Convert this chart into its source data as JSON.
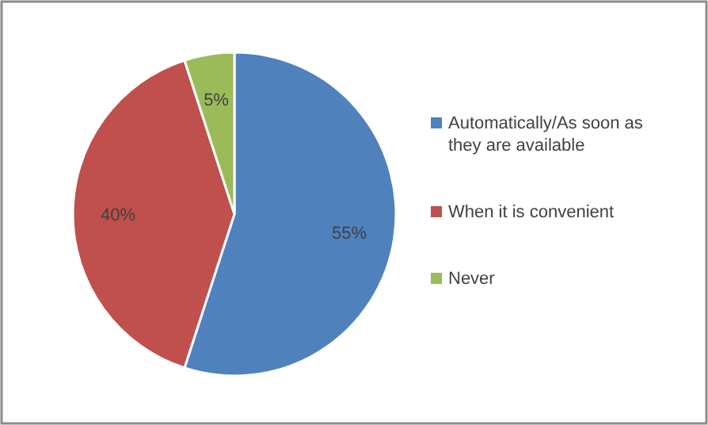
{
  "chart_data": {
    "type": "pie",
    "categories": [
      "Automatically/As soon as they are available",
      "When it is convenient",
      "Never"
    ],
    "values": [
      55,
      40,
      5
    ],
    "colors": [
      "#4f81bd",
      "#c0504d",
      "#9bbb59"
    ],
    "value_labels": [
      "55%",
      "40%",
      "5%"
    ],
    "legend": "right"
  }
}
